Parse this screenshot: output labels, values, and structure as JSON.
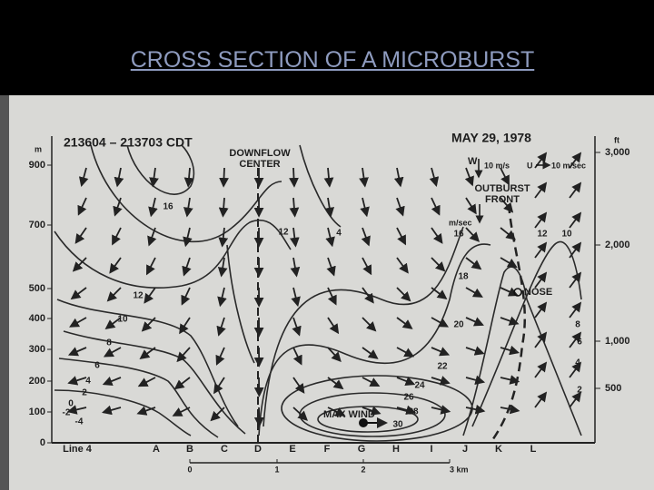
{
  "header": {
    "title": "CROSS SECTION OF A MICROBURST"
  },
  "figure": {
    "time": "213604 – 213703 CDT",
    "date": "MAY 29, 1978",
    "downflow_center": [
      "DOWNFLOW",
      "CENTER"
    ],
    "outburst_front": [
      "OUTBURST",
      "FRONT"
    ],
    "legend": {
      "w": "W",
      "w_scale": "10 m/s",
      "u": "U",
      "u_scale": "10 m/sec"
    },
    "speed_unit": "m/sec",
    "nose": "NOSE",
    "max_wind": "MAX WIND",
    "left_axis": {
      "unit": "m",
      "ticks": [
        "900",
        "700",
        "500",
        "400",
        "300",
        "200",
        "100",
        "0"
      ]
    },
    "right_axis": {
      "unit": "ft",
      "ticks": [
        "3,000",
        "2,000",
        "1,000",
        "500"
      ]
    },
    "stations": [
      "Line 4",
      "A",
      "B",
      "C",
      "D",
      "E",
      "F",
      "G",
      "H",
      "I",
      "J",
      "K",
      "L"
    ],
    "km_axis": [
      "0",
      "1",
      "2",
      "3 km"
    ],
    "contour_labels": [
      "16",
      "12",
      "12",
      "4",
      "10",
      "8",
      "6",
      "4",
      "2",
      "0",
      "-2",
      "-4",
      "16",
      "18",
      "12",
      "10",
      "20",
      "22",
      "24",
      "26",
      "28",
      "30",
      "8",
      "6",
      "4",
      "2"
    ]
  }
}
